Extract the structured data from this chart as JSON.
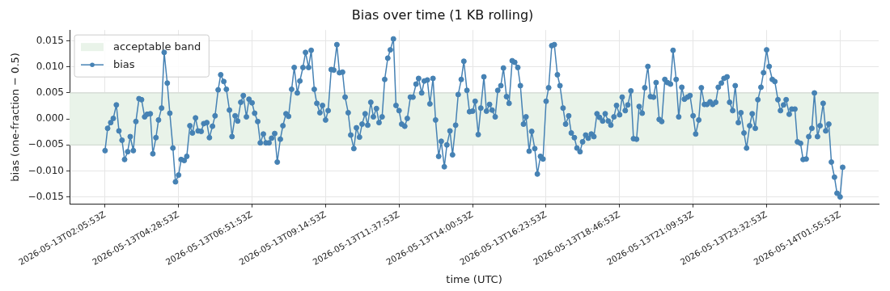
{
  "chart_data": {
    "type": "line",
    "title": "Bias over time (1 KB rolling)",
    "xlabel": "time (UTC)",
    "ylabel": "bias (one-fraction − 0.5)",
    "x": [
      "2026-05-13T02:06",
      "2026-05-13T02:11",
      "2026-05-13T02:17",
      "2026-05-13T02:22",
      "2026-05-13T02:28",
      "2026-05-13T02:33",
      "2026-05-13T02:39",
      "2026-05-13T02:44",
      "2026-05-13T02:50",
      "2026-05-13T02:55",
      "2026-05-13T03:01",
      "2026-05-13T03:06",
      "2026-05-13T03:12",
      "2026-05-13T03:17",
      "2026-05-13T03:23",
      "2026-05-13T03:28",
      "2026-05-13T03:34",
      "2026-05-13T03:39",
      "2026-05-13T03:45",
      "2026-05-13T03:50",
      "2026-05-13T03:56",
      "2026-05-13T04:01",
      "2026-05-13T04:07",
      "2026-05-13T04:12",
      "2026-05-13T04:18",
      "2026-05-13T04:23",
      "2026-05-13T04:29",
      "2026-05-13T04:34",
      "2026-05-13T04:40",
      "2026-05-13T04:45",
      "2026-05-13T04:51",
      "2026-05-13T04:56",
      "2026-05-13T05:02",
      "2026-05-13T05:07",
      "2026-05-13T05:13",
      "2026-05-13T05:18",
      "2026-05-13T05:24",
      "2026-05-13T05:29",
      "2026-05-13T05:35",
      "2026-05-13T05:40",
      "2026-05-13T05:46",
      "2026-05-13T05:51",
      "2026-05-13T05:57",
      "2026-05-13T06:02",
      "2026-05-13T06:08",
      "2026-05-13T06:13",
      "2026-05-13T06:19",
      "2026-05-13T06:24",
      "2026-05-13T06:30",
      "2026-05-13T06:35",
      "2026-05-13T06:41",
      "2026-05-13T06:46",
      "2026-05-13T06:52",
      "2026-05-13T06:57",
      "2026-05-13T07:03",
      "2026-05-13T07:08",
      "2026-05-13T07:14",
      "2026-05-13T07:19",
      "2026-05-13T07:25",
      "2026-05-13T07:30",
      "2026-05-13T07:36",
      "2026-05-13T07:41",
      "2026-05-13T07:47",
      "2026-05-13T07:52",
      "2026-05-13T07:58",
      "2026-05-13T08:03",
      "2026-05-13T08:09",
      "2026-05-13T08:14",
      "2026-05-13T08:20",
      "2026-05-13T08:25",
      "2026-05-13T08:31",
      "2026-05-13T08:36",
      "2026-05-13T08:42",
      "2026-05-13T08:47",
      "2026-05-13T08:53",
      "2026-05-13T08:58",
      "2026-05-13T09:04",
      "2026-05-13T09:09",
      "2026-05-13T09:15",
      "2026-05-13T09:20",
      "2026-05-13T09:26",
      "2026-05-13T09:31",
      "2026-05-13T09:37",
      "2026-05-13T09:42",
      "2026-05-13T09:48",
      "2026-05-13T09:53",
      "2026-05-13T09:59",
      "2026-05-13T10:04",
      "2026-05-13T10:10",
      "2026-05-13T10:15",
      "2026-05-13T10:21",
      "2026-05-13T10:26",
      "2026-05-13T10:32",
      "2026-05-13T10:37",
      "2026-05-13T10:43",
      "2026-05-13T10:48",
      "2026-05-13T10:54",
      "2026-05-13T10:59",
      "2026-05-13T11:05",
      "2026-05-13T11:10",
      "2026-05-13T11:16",
      "2026-05-13T11:21",
      "2026-05-13T11:27",
      "2026-05-13T11:32",
      "2026-05-13T11:38",
      "2026-05-13T11:43",
      "2026-05-13T11:49",
      "2026-05-13T11:54",
      "2026-05-13T12:00",
      "2026-05-13T12:05",
      "2026-05-13T12:11",
      "2026-05-13T12:16",
      "2026-05-13T12:22",
      "2026-05-13T12:27",
      "2026-05-13T12:33",
      "2026-05-13T12:38",
      "2026-05-13T12:44",
      "2026-05-13T12:49",
      "2026-05-13T12:55",
      "2026-05-13T13:00",
      "2026-05-13T13:06",
      "2026-05-13T13:11",
      "2026-05-13T13:17",
      "2026-05-13T13:22",
      "2026-05-13T13:28",
      "2026-05-13T13:33",
      "2026-05-13T13:39",
      "2026-05-13T13:44",
      "2026-05-13T13:50",
      "2026-05-13T13:55",
      "2026-05-13T14:01",
      "2026-05-13T14:06",
      "2026-05-13T14:12",
      "2026-05-13T14:17",
      "2026-05-13T14:23",
      "2026-05-13T14:28",
      "2026-05-13T14:34",
      "2026-05-13T14:39",
      "2026-05-13T14:45",
      "2026-05-13T14:50",
      "2026-05-13T14:56",
      "2026-05-13T15:01",
      "2026-05-13T15:07",
      "2026-05-13T15:12",
      "2026-05-13T15:18",
      "2026-05-13T15:23",
      "2026-05-13T15:29",
      "2026-05-13T15:34",
      "2026-05-13T15:40",
      "2026-05-13T15:45",
      "2026-05-13T15:51",
      "2026-05-13T15:56",
      "2026-05-13T16:02",
      "2026-05-13T16:07",
      "2026-05-13T16:13",
      "2026-05-13T16:18",
      "2026-05-13T16:24",
      "2026-05-13T16:29",
      "2026-05-13T16:35",
      "2026-05-13T16:40",
      "2026-05-13T16:46",
      "2026-05-13T16:51",
      "2026-05-13T16:57",
      "2026-05-13T17:02",
      "2026-05-13T17:08",
      "2026-05-13T17:13",
      "2026-05-13T17:19",
      "2026-05-13T17:24",
      "2026-05-13T17:30",
      "2026-05-13T17:35",
      "2026-05-13T17:41",
      "2026-05-13T17:46",
      "2026-05-13T17:52",
      "2026-05-13T17:57",
      "2026-05-13T18:03",
      "2026-05-13T18:08",
      "2026-05-13T18:14",
      "2026-05-13T18:19",
      "2026-05-13T18:25",
      "2026-05-13T18:30",
      "2026-05-13T18:36",
      "2026-05-13T18:41",
      "2026-05-13T18:47",
      "2026-05-13T18:52",
      "2026-05-13T18:58",
      "2026-05-13T19:03",
      "2026-05-13T19:09",
      "2026-05-13T19:14",
      "2026-05-13T19:20",
      "2026-05-13T19:25",
      "2026-05-13T19:31",
      "2026-05-13T19:36",
      "2026-05-13T19:42",
      "2026-05-13T19:47",
      "2026-05-13T19:53",
      "2026-05-13T19:58",
      "2026-05-13T20:04",
      "2026-05-13T20:09",
      "2026-05-13T20:15",
      "2026-05-13T20:20",
      "2026-05-13T20:26",
      "2026-05-13T20:31",
      "2026-05-13T20:37",
      "2026-05-13T20:42",
      "2026-05-13T20:48",
      "2026-05-13T20:53",
      "2026-05-13T20:59",
      "2026-05-13T21:04",
      "2026-05-13T21:10",
      "2026-05-13T21:15",
      "2026-05-13T21:21",
      "2026-05-13T21:26",
      "2026-05-13T21:32",
      "2026-05-13T21:37",
      "2026-05-13T21:43",
      "2026-05-13T21:48",
      "2026-05-13T21:54",
      "2026-05-13T21:59",
      "2026-05-13T22:05",
      "2026-05-13T22:10",
      "2026-05-13T22:16",
      "2026-05-13T22:21",
      "2026-05-13T22:27",
      "2026-05-13T22:32",
      "2026-05-13T22:38",
      "2026-05-13T22:43",
      "2026-05-13T22:49",
      "2026-05-13T22:54",
      "2026-05-13T23:00",
      "2026-05-13T23:05",
      "2026-05-13T23:11",
      "2026-05-13T23:16",
      "2026-05-13T23:22",
      "2026-05-13T23:27",
      "2026-05-13T23:33",
      "2026-05-13T23:38",
      "2026-05-13T23:44",
      "2026-05-13T23:49",
      "2026-05-13T23:55",
      "2026-05-14T00:00",
      "2026-05-14T00:06",
      "2026-05-14T00:11",
      "2026-05-14T00:17",
      "2026-05-14T00:22",
      "2026-05-14T00:28",
      "2026-05-14T00:33",
      "2026-05-14T00:39",
      "2026-05-14T00:44",
      "2026-05-14T00:50",
      "2026-05-14T00:55",
      "2026-05-14T01:01",
      "2026-05-14T01:06",
      "2026-05-14T01:12",
      "2026-05-14T01:17",
      "2026-05-14T01:23",
      "2026-05-14T01:28",
      "2026-05-14T01:34",
      "2026-05-14T01:39",
      "2026-05-14T01:45",
      "2026-05-14T01:50",
      "2026-05-14T01:56",
      "2026-05-14T02:01"
    ],
    "series": [
      {
        "name": "bias",
        "color": "#4682b4",
        "values": [
          -0.0061,
          -0.0018,
          -0.0007,
          0.0001,
          0.0027,
          -0.0023,
          -0.0041,
          -0.0078,
          -0.0063,
          -0.0034,
          -0.0061,
          -0.0005,
          0.0039,
          0.0037,
          0.0004,
          0.0009,
          0.001,
          -0.0067,
          -0.0036,
          -0.0002,
          0.0021,
          0.0128,
          0.0069,
          0.0011,
          -0.0056,
          -0.0121,
          -0.0108,
          -0.0078,
          -0.008,
          -0.0072,
          -0.0013,
          -0.0027,
          0.0002,
          -0.0023,
          -0.0024,
          -0.0009,
          -0.0007,
          -0.0036,
          -0.0014,
          0.0006,
          0.0056,
          0.0085,
          0.0072,
          0.0057,
          0.0017,
          -0.0034,
          0.0006,
          -0.0004,
          0.0032,
          0.0045,
          0.0004,
          0.0038,
          0.0031,
          0.0011,
          -0.0005,
          -0.0046,
          -0.0029,
          -0.0046,
          -0.0046,
          -0.0037,
          -0.0028,
          -0.0083,
          -0.0039,
          -0.0013,
          0.001,
          0.0005,
          0.0057,
          0.0099,
          0.005,
          0.0073,
          0.0099,
          0.0128,
          0.0099,
          0.0132,
          0.0057,
          0.003,
          0.0012,
          0.0026,
          -0.0002,
          0.0016,
          0.0095,
          0.0094,
          0.0143,
          0.0089,
          0.009,
          0.0042,
          0.0012,
          -0.0031,
          -0.0057,
          -0.0017,
          -0.0035,
          -0.001,
          0.001,
          -0.0012,
          0.0032,
          0.0004,
          0.002,
          -0.0007,
          0.0004,
          0.0076,
          0.0117,
          0.0133,
          0.0154,
          0.0026,
          0.0016,
          -0.001,
          -0.0014,
          0.0001,
          0.0042,
          0.0042,
          0.0067,
          0.0078,
          0.005,
          0.0073,
          0.0075,
          0.0029,
          0.0078,
          -0.0002,
          -0.0072,
          -0.0043,
          -0.0092,
          -0.005,
          -0.0023,
          -0.0069,
          -0.0012,
          0.0047,
          0.0076,
          0.0111,
          0.0055,
          0.0014,
          0.0015,
          0.0034,
          -0.003,
          0.0021,
          0.0081,
          0.0015,
          0.0028,
          0.0017,
          0.0004,
          0.0055,
          0.0064,
          0.0098,
          0.0043,
          0.003,
          0.0112,
          0.0109,
          0.0099,
          0.0064,
          -0.001,
          0.0004,
          -0.0062,
          -0.0024,
          -0.0057,
          -0.0106,
          -0.0072,
          -0.0077,
          0.0034,
          0.006,
          0.0141,
          0.0143,
          0.0085,
          0.0064,
          0.0021,
          -0.001,
          0.0006,
          -0.0027,
          -0.0036,
          -0.0056,
          -0.0063,
          -0.0044,
          -0.0031,
          -0.0037,
          -0.0029,
          -0.0034,
          0.001,
          0.0003,
          -0.0004,
          0.001,
          -0.0004,
          -0.0012,
          0.0004,
          0.0026,
          0.0008,
          0.0042,
          0.0016,
          0.0027,
          0.0054,
          -0.0038,
          -0.0039,
          0.0024,
          0.0011,
          0.006,
          0.0101,
          0.0043,
          0.0042,
          0.007,
          -0.0001,
          -0.0005,
          0.0076,
          0.007,
          0.0067,
          0.0132,
          0.0076,
          0.0004,
          0.0061,
          0.0038,
          0.0042,
          0.0045,
          0.0006,
          -0.0029,
          -0.0002,
          0.006,
          0.0028,
          0.0028,
          0.0033,
          0.0028,
          0.0032,
          0.0061,
          0.0069,
          0.0078,
          0.0081,
          0.0032,
          0.0016,
          0.0064,
          -0.0007,
          0.0012,
          -0.0027,
          -0.0056,
          -0.0013,
          0.001,
          -0.0018,
          0.0037,
          0.0061,
          0.0089,
          0.0133,
          0.0101,
          0.0076,
          0.0072,
          0.0037,
          0.0016,
          0.0027,
          0.0037,
          0.0009,
          0.0019,
          0.0019,
          -0.0044,
          -0.0047,
          -0.0078,
          -0.0077,
          -0.0034,
          -0.0018,
          0.005,
          -0.0034,
          -0.0013,
          0.003,
          -0.0023,
          -0.001,
          -0.0083,
          -0.0112,
          -0.0143,
          -0.015,
          -0.0093
        ]
      }
    ],
    "xlim": [
      "2026-05-13T00:57",
      "2026-05-14T03:11"
    ],
    "xticks": [
      {
        "value": "2026-05-13T02:05:53",
        "label": "2026-05-13T02:05:53Z"
      },
      {
        "value": "2026-05-13T04:28:53",
        "label": "2026-05-13T04:28:53Z"
      },
      {
        "value": "2026-05-13T06:51:53",
        "label": "2026-05-13T06:51:53Z"
      },
      {
        "value": "2026-05-13T09:14:53",
        "label": "2026-05-13T09:14:53Z"
      },
      {
        "value": "2026-05-13T11:37:53",
        "label": "2026-05-13T11:37:53Z"
      },
      {
        "value": "2026-05-13T14:00:53",
        "label": "2026-05-13T14:00:53Z"
      },
      {
        "value": "2026-05-13T16:23:53",
        "label": "2026-05-13T16:23:53Z"
      },
      {
        "value": "2026-05-13T18:46:53",
        "label": "2026-05-13T18:46:53Z"
      },
      {
        "value": "2026-05-13T21:09:53",
        "label": "2026-05-13T21:09:53Z"
      },
      {
        "value": "2026-05-13T23:32:53",
        "label": "2026-05-13T23:32:53Z"
      },
      {
        "value": "2026-05-14T01:55:53",
        "label": "2026-05-14T01:55:53Z"
      }
    ],
    "ylim": [
      -0.0164,
      0.0171
    ],
    "yticks": [
      {
        "value": -0.015,
        "label": "−0.015"
      },
      {
        "value": -0.01,
        "label": "−0.010"
      },
      {
        "value": -0.005,
        "label": "−0.005"
      },
      {
        "value": 0,
        "label": "0.000"
      },
      {
        "value": 0.005,
        "label": "0.005"
      },
      {
        "value": 0.01,
        "label": "0.010"
      },
      {
        "value": 0.015,
        "label": "0.015"
      }
    ],
    "bands": [
      {
        "axis": "y",
        "from": -0.005,
        "to": 0.005,
        "label": "acceptable band",
        "color": "#e9f3e9"
      }
    ],
    "grid": true,
    "legend": "top left",
    "marker": "circle",
    "line_style": "solid"
  }
}
